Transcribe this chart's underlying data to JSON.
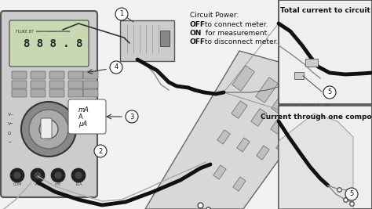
{
  "figsize": [
    4.74,
    2.67
  ],
  "dpi": 100,
  "bg_color": "#f2f2f2",
  "circuit_power_title": "Circuit Power:",
  "cp_off1": "OFF",
  "cp_text1": " to connect meter.",
  "cp_on": "ON",
  "cp_text2": "  for measurement.",
  "cp_off2": "OFF",
  "cp_text3": " to disconnect meter.",
  "box1_title": "Total current to circuit",
  "box2_title": "Current through one component",
  "label_color": "#111111",
  "wire_black": "#111111",
  "wire_gray": "#888888",
  "meter_body": "#cccccc",
  "meter_edge": "#555555",
  "board_color": "#d5d5d5",
  "supply_color": "#cccccc"
}
